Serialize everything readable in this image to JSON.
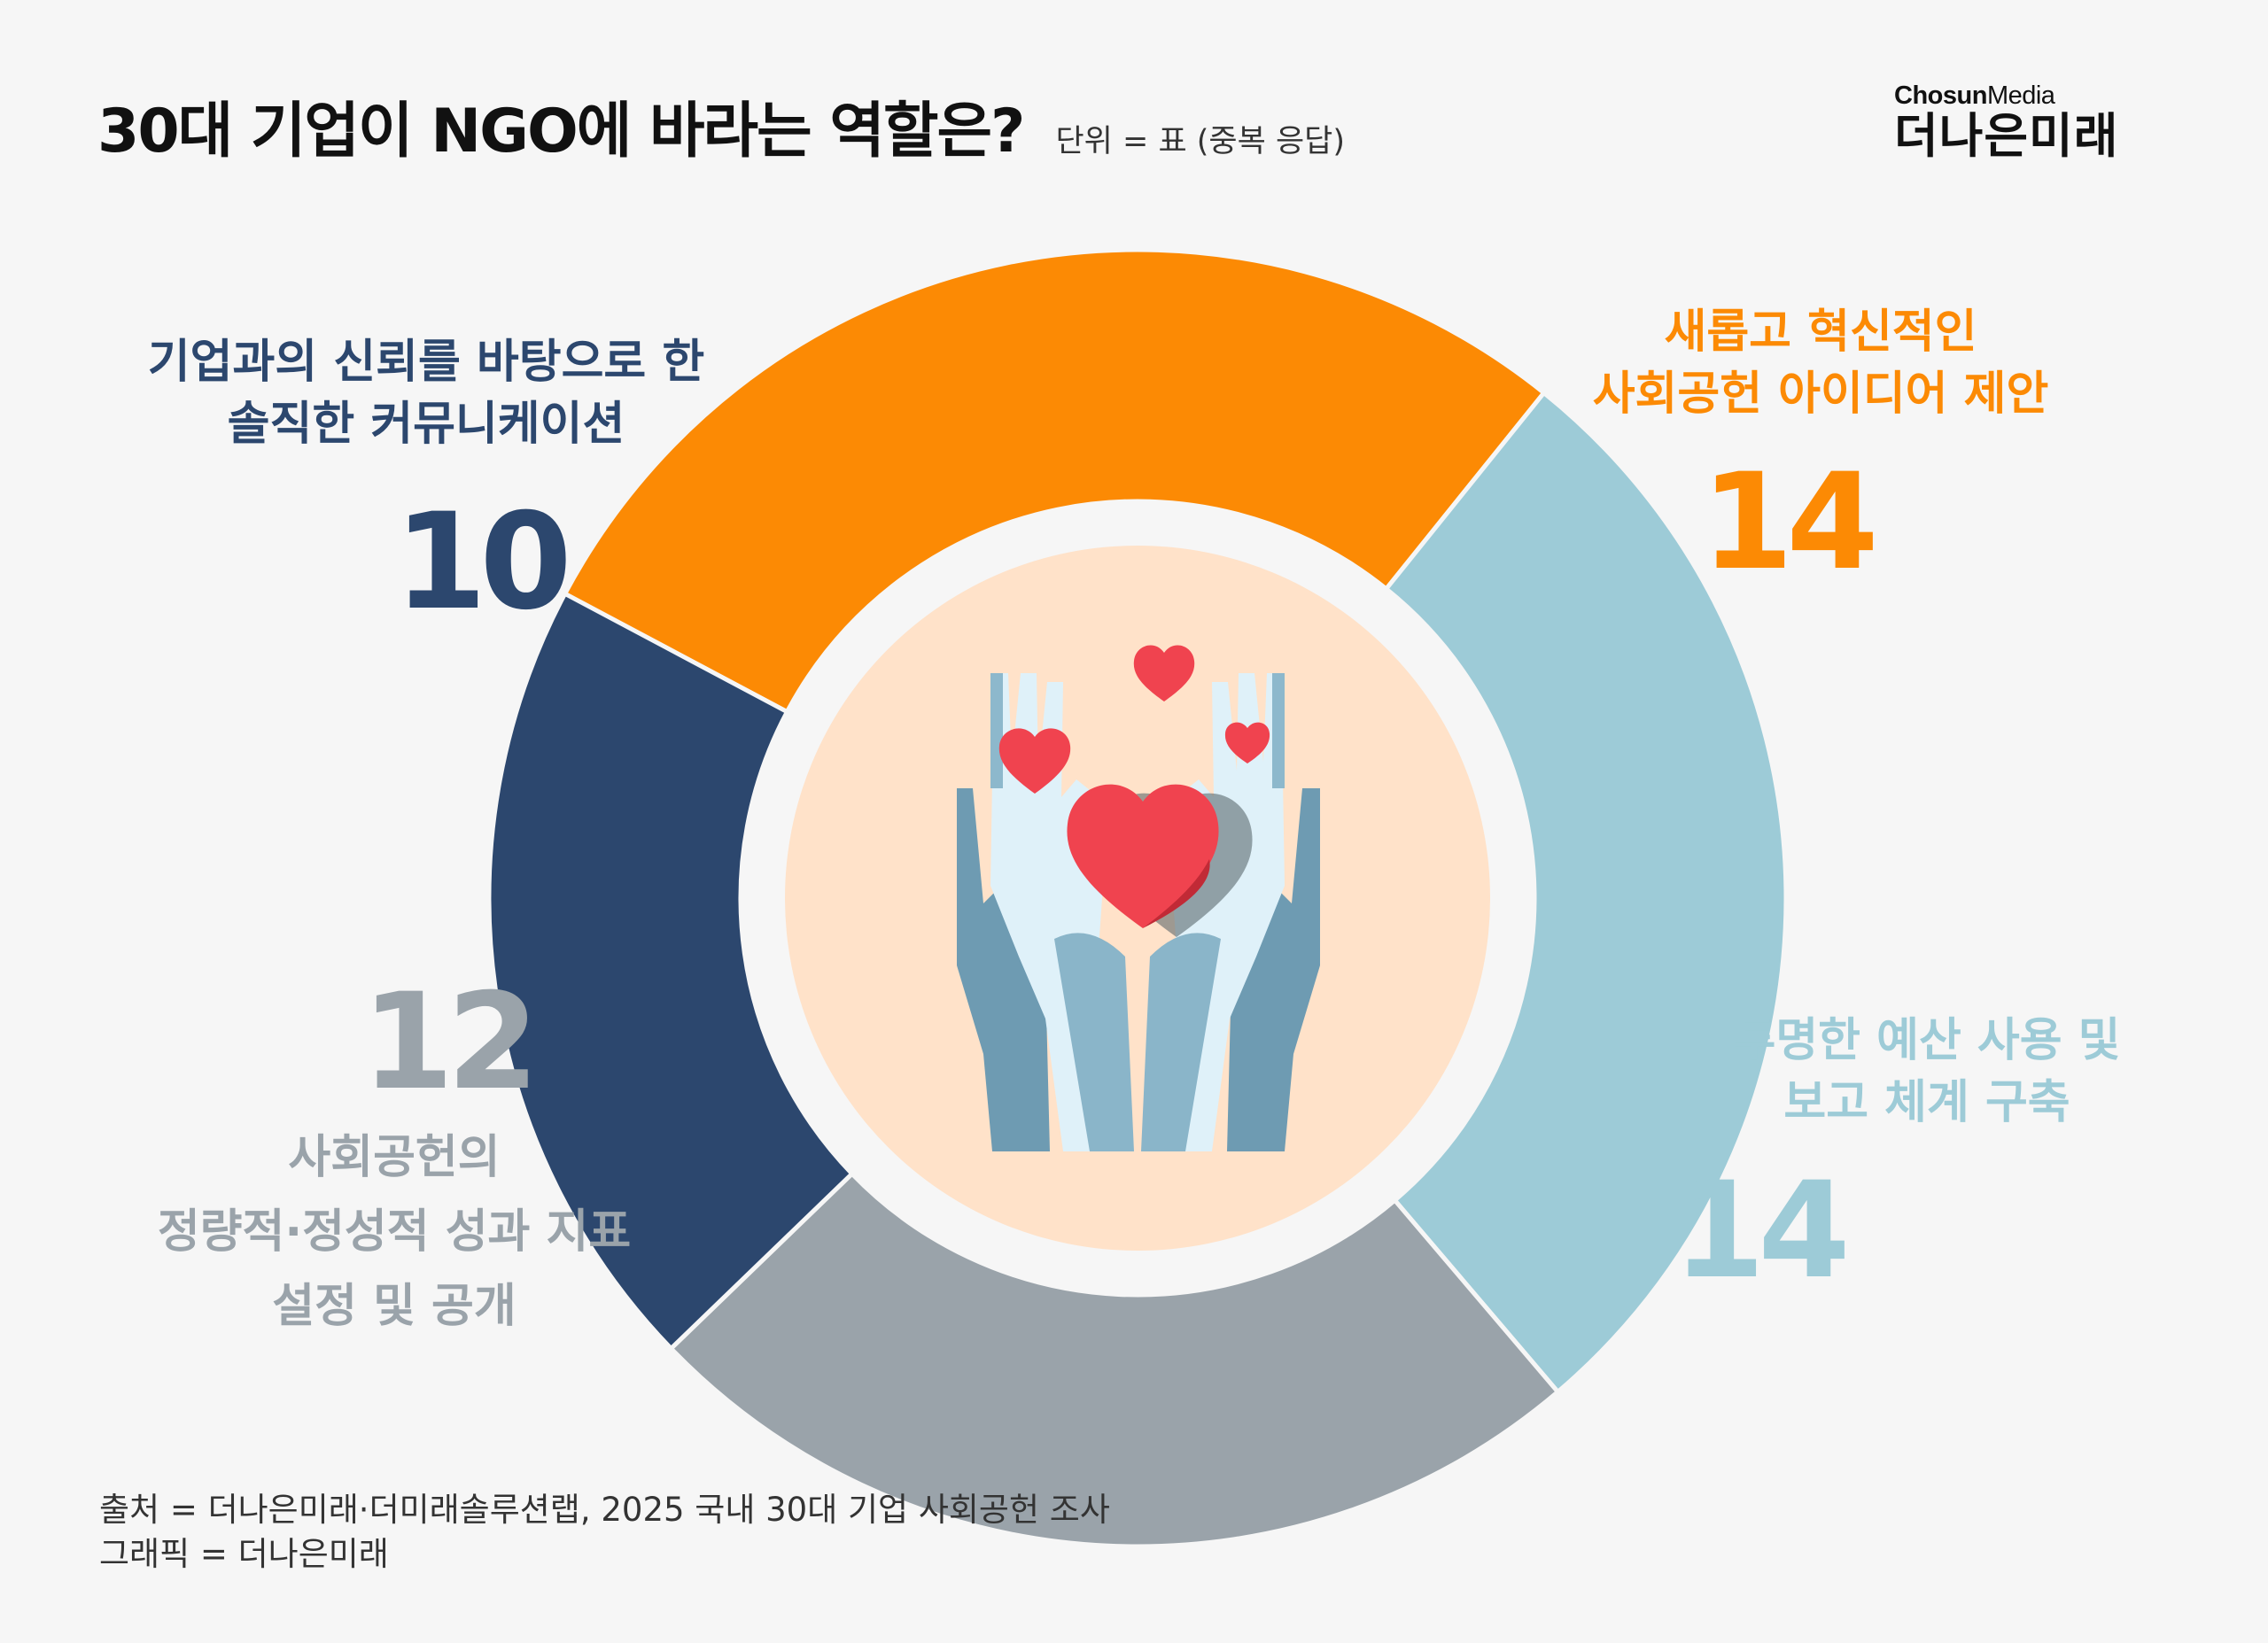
{
  "header": {
    "title": "30대 기업이 NGO에 바라는 역할은?",
    "unit": "단위 = 표 (중복 응답)"
  },
  "brand": {
    "top_bold": "Chosun",
    "top_light": "Media",
    "main": "더나은미래"
  },
  "chart_data": {
    "type": "pie",
    "title": "30대 기업이 NGO에 바라는 역할은?",
    "unit": "표",
    "donut": true,
    "slices": [
      {
        "label_lines": [
          "새롭고 혁신적인",
          "사회공헌 아이디어 제안"
        ],
        "value": 14,
        "color": "#fc8a04"
      },
      {
        "label_lines": [
          "투명한 예산 사용 및",
          "보고 체계 구축"
        ],
        "value": 14,
        "color": "#9dcbd7"
      },
      {
        "label_lines": [
          "사회공헌의",
          "정량적·정성적 성과 지표",
          "설정 및 공개"
        ],
        "value": 12,
        "color": "#9aa3aa"
      },
      {
        "label_lines": [
          "기업과의 신뢰를 바탕으로 한",
          "솔직한 커뮤니케이션"
        ],
        "value": 10,
        "color": "#2c476e"
      }
    ]
  },
  "footer": {
    "source": "출처 = 더나은미래·더미래솔루션랩, 2025 국내 30대 기업 사회공헌 조사",
    "graphic": "그래픽 = 더나은미래"
  }
}
